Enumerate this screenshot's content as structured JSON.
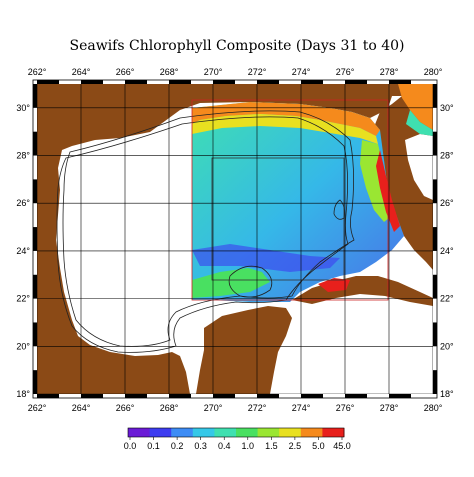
{
  "title": "Seawifs Chlorophyll Composite (Days 31 to 40)",
  "map": {
    "lon_ticks": [
      "262°",
      "264°",
      "266°",
      "268°",
      "270°",
      "272°",
      "274°",
      "276°",
      "278°",
      "280°"
    ],
    "lat_ticks": [
      "30°",
      "28°",
      "26°",
      "24°",
      "22°",
      "20°",
      "18°"
    ],
    "lon_range": [
      262,
      280
    ],
    "lat_range": [
      18,
      31
    ],
    "land_color": "#8b4a16",
    "no_data_color": "#ffffff",
    "grid_color": "#000000"
  },
  "colorbar": {
    "labels": [
      "0.0",
      "0.1",
      "0.2",
      "0.3",
      "0.4",
      "1.0",
      "1.5",
      "2.5",
      "5.0",
      "45.0"
    ],
    "colors": [
      "#6a1bd6",
      "#3d3cf0",
      "#3d8cf5",
      "#35c8e8",
      "#3fe0b0",
      "#49e061",
      "#9ae632",
      "#e8e020",
      "#f58a1c",
      "#e8201c"
    ]
  }
}
